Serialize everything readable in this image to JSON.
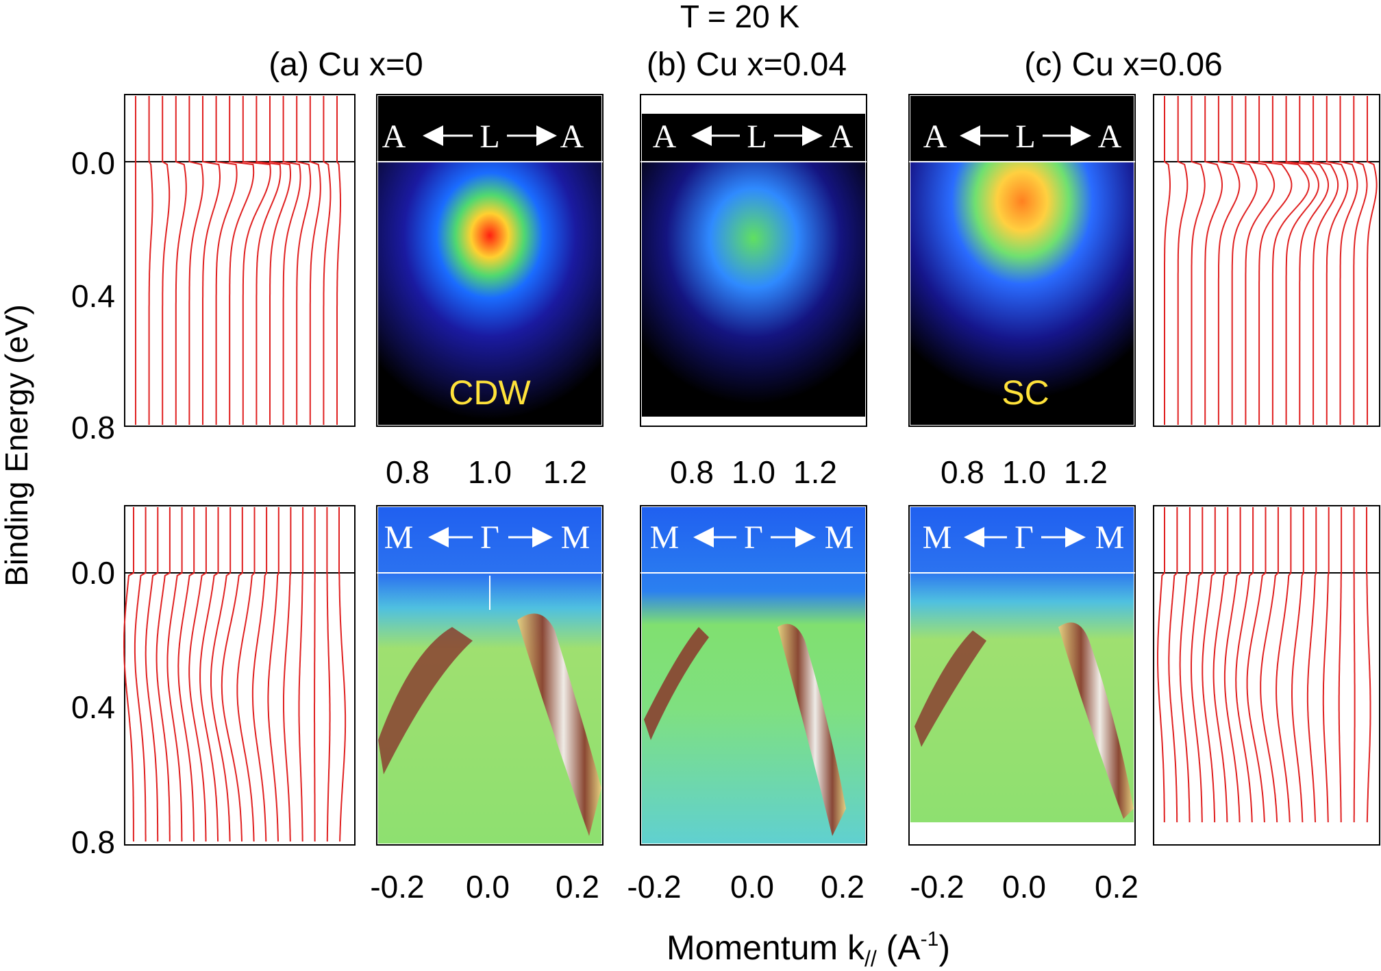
{
  "figure": {
    "title": "T = 20 K",
    "y_axis_label": "Binding Energy (eV)",
    "x_axis_label": {
      "main": "Momentum k",
      "subscript": "//",
      "unit_open": " (A",
      "unit_exp": "-1",
      "unit_close": ")"
    },
    "y_ticks": [
      "0.0",
      "0.4",
      "0.8"
    ],
    "panels": [
      {
        "id": "a",
        "label": "(a) Cu x=0",
        "top_path": [
          "A",
          "L",
          "A"
        ],
        "top_phase": "CDW",
        "top_kticks": [
          "0.8",
          "1.0",
          "1.2"
        ],
        "bottom_path": [
          "M",
          "Γ",
          "M"
        ],
        "bottom_kticks": [
          "-0.2",
          "0.0",
          "0.2"
        ]
      },
      {
        "id": "b",
        "label": "(b) Cu x=0.04",
        "top_path": [
          "A",
          "L",
          "A"
        ],
        "top_phase": "",
        "top_kticks": [
          "0.8",
          "1.0",
          "1.2"
        ],
        "bottom_path": [
          "M",
          "Γ",
          "M"
        ],
        "bottom_kticks": [
          "-0.2",
          "0.0",
          "0.2"
        ]
      },
      {
        "id": "c",
        "label": "(c) Cu x=0.06",
        "top_path": [
          "A",
          "L",
          "A"
        ],
        "top_phase": "SC",
        "top_kticks": [
          "0.8",
          "1.0",
          "1.2"
        ],
        "bottom_path": [
          "M",
          "Γ",
          "M"
        ],
        "bottom_kticks": [
          "-0.2",
          "0.0",
          "0.2"
        ]
      }
    ],
    "colors": {
      "edc_line": "#e02020",
      "phase_label": "#ffe23a",
      "axis": "#000000"
    }
  }
}
